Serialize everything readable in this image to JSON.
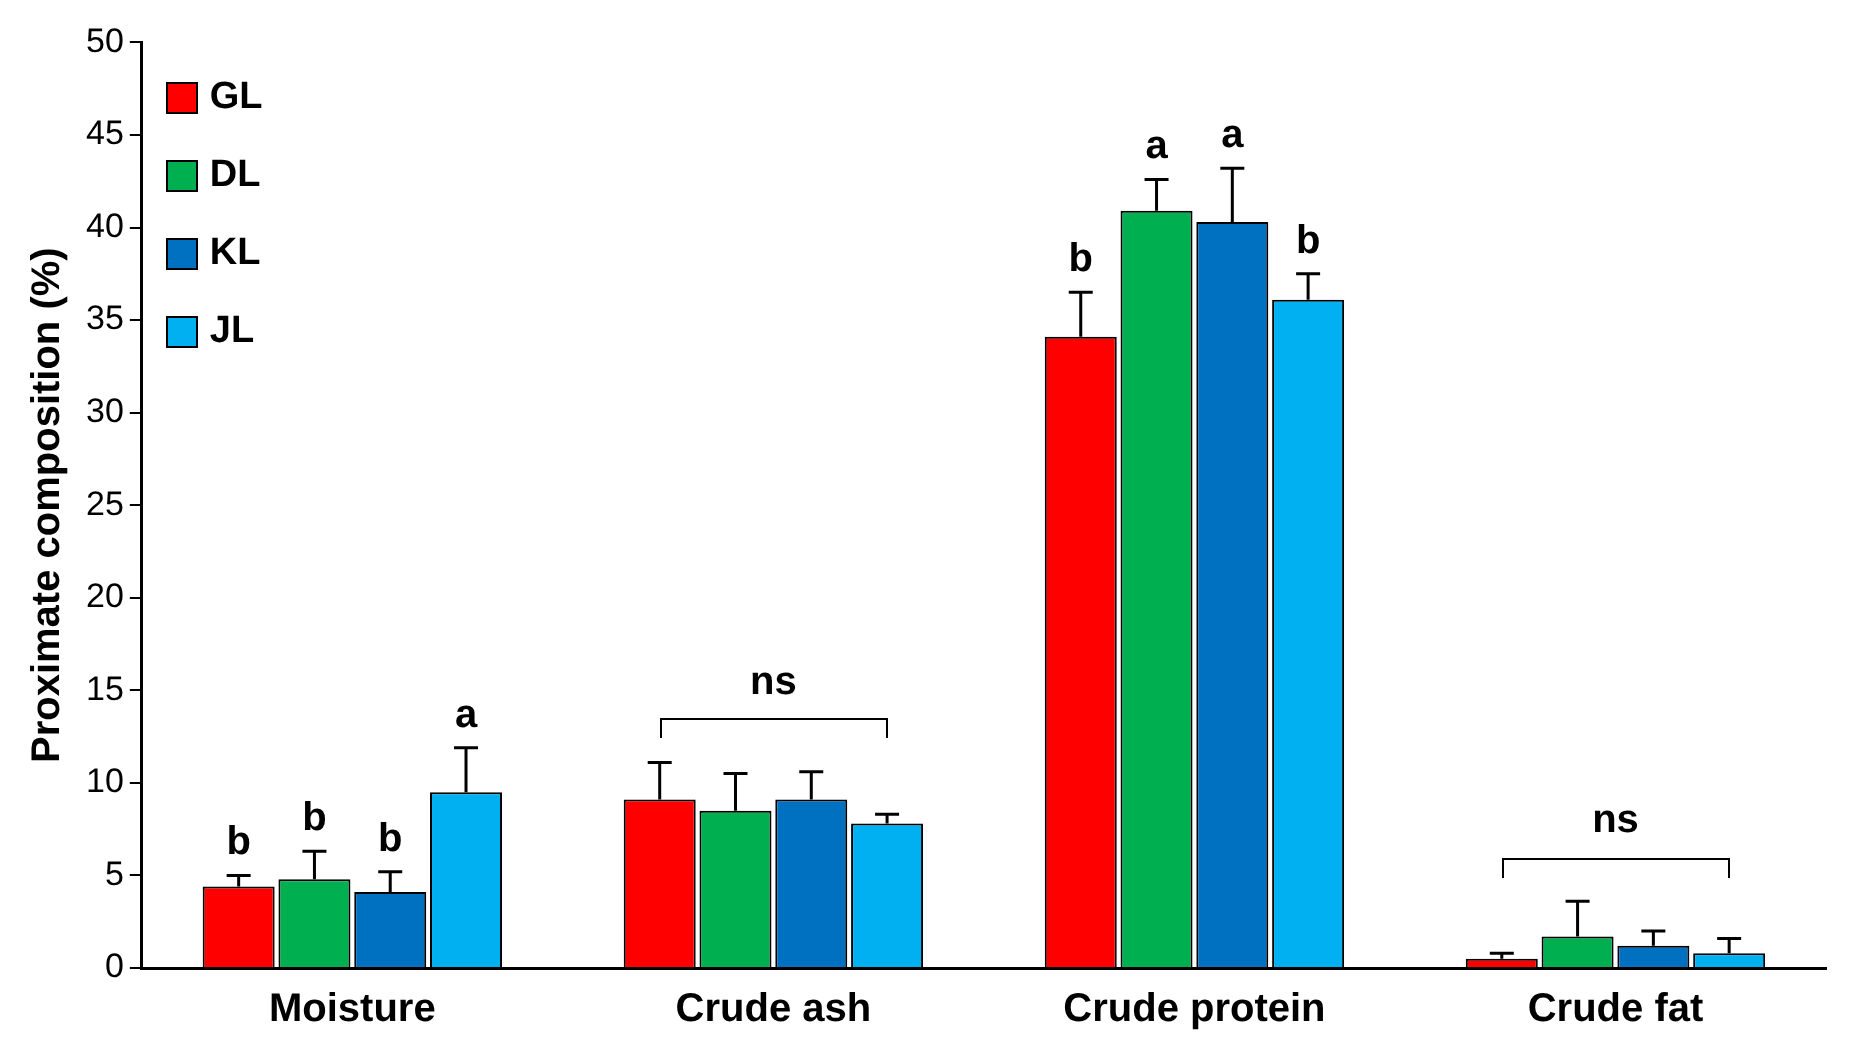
{
  "chart_data": {
    "type": "bar",
    "ylabel": "Proximate composition (%)",
    "categories": [
      "Moisture",
      "Crude ash",
      "Crude protein",
      "Crude fat"
    ],
    "series": [
      {
        "name": "GL",
        "color": "#ff0000",
        "values": [
          4.4,
          9.1,
          34.1,
          0.5
        ],
        "errors": [
          0.6,
          2.0,
          2.4,
          0.3
        ],
        "value_labels": [
          "b",
          null,
          "b",
          null
        ]
      },
      {
        "name": "DL",
        "color": "#00b050",
        "values": [
          4.8,
          8.5,
          40.9,
          1.7
        ],
        "errors": [
          1.5,
          2.0,
          1.7,
          1.9
        ],
        "value_labels": [
          "b",
          null,
          "a",
          null
        ]
      },
      {
        "name": "KL",
        "color": "#0070c0",
        "values": [
          4.1,
          9.1,
          40.3,
          1.2
        ],
        "errors": [
          1.1,
          1.5,
          2.9,
          0.8
        ],
        "value_labels": [
          "b",
          null,
          "a",
          null
        ]
      },
      {
        "name": "JL",
        "color": "#00b0f0",
        "values": [
          9.5,
          7.8,
          36.1,
          0.8
        ],
        "errors": [
          2.4,
          0.5,
          1.4,
          0.8
        ],
        "value_labels": [
          "a",
          null,
          "b",
          null
        ]
      }
    ],
    "ylim": [
      0,
      50
    ],
    "yticks": [
      0,
      5,
      10,
      15,
      20,
      25,
      30,
      35,
      40,
      45,
      50
    ],
    "grid": false,
    "legend": "top left",
    "annotations": [
      "ns",
      "ns"
    ]
  }
}
